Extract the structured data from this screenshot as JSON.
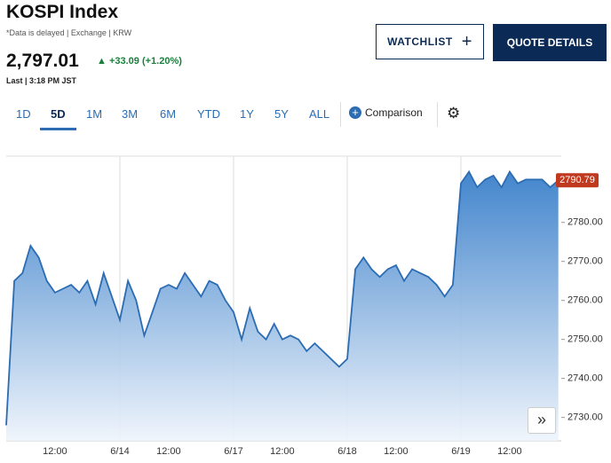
{
  "header": {
    "title": "KOSPI Index",
    "note": "*Data is delayed | Exchange | KRW",
    "price": "2,797.01",
    "change": "+33.09 (+1.20%)",
    "last": "Last | 3:18 PM JST",
    "buttons": [
      "WATCHLIST",
      "QUOTE DETAILS"
    ]
  },
  "tabs": {
    "items": [
      "1D",
      "5D",
      "1M",
      "3M",
      "6M",
      "YTD",
      "1Y",
      "5Y",
      "ALL"
    ],
    "active": "5D",
    "comparison": "Comparison"
  },
  "chart_data": {
    "type": "area",
    "color": "#2b6cb3",
    "categories": [
      null,
      null,
      null,
      null,
      null,
      null,
      "12:00",
      null,
      null,
      null,
      null,
      null,
      null,
      null,
      "6/14",
      null,
      null,
      null,
      null,
      null,
      "12:00",
      null,
      null,
      null,
      null,
      null,
      null,
      null,
      "6/17",
      null,
      null,
      null,
      null,
      null,
      "12:00",
      null,
      null,
      null,
      null,
      null,
      null,
      null,
      "6/18",
      null,
      null,
      null,
      null,
      null,
      "12:00",
      null,
      null,
      null,
      null,
      null,
      null,
      null,
      "6/19",
      null,
      null,
      null,
      null,
      null,
      "12:00",
      null,
      null,
      null,
      null,
      null,
      null
    ],
    "values": [
      2728,
      2765,
      2767,
      2774,
      2771,
      2765,
      2762,
      2763,
      2764,
      2762,
      2765,
      2759,
      2767,
      2761,
      2755,
      2765,
      2760,
      2751,
      2757,
      2763,
      2764,
      2763,
      2767,
      2764,
      2761,
      2765,
      2764,
      2760,
      2757,
      2750,
      2758,
      2752,
      2750,
      2754,
      2750,
      2751,
      2750,
      2747,
      2749,
      2747,
      2745,
      2743,
      2745,
      2768,
      2771,
      2768,
      2766,
      2768,
      2769,
      2765,
      2768,
      2767,
      2766,
      2764,
      2761,
      2764,
      2790,
      2793,
      2789,
      2791,
      2792,
      2789,
      2793,
      2790,
      2791,
      2791,
      2791,
      2789,
      2790.79
    ],
    "ylim": [
      2724,
      2797
    ],
    "yticks": [
      {
        "value": 2730,
        "label": "2730.00"
      },
      {
        "value": 2740,
        "label": "2740.00"
      },
      {
        "value": 2750,
        "label": "2750.00"
      },
      {
        "value": 2760,
        "label": "2760.00"
      },
      {
        "value": 2770,
        "label": "2770.00"
      },
      {
        "value": 2780,
        "label": "2780.00"
      }
    ]
  }
}
